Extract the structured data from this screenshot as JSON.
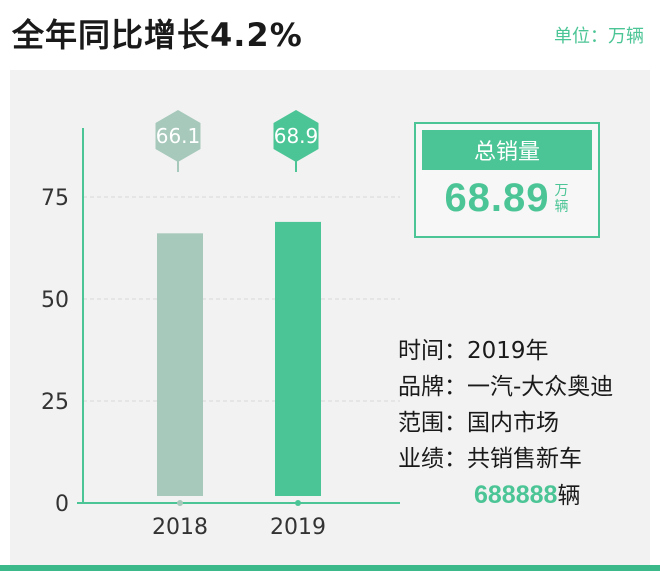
{
  "header": {
    "title": "全年同比增长4.2%",
    "unit": "单位：万辆"
  },
  "summary": {
    "label": "总销量",
    "value": "68.89",
    "unit": "万辆"
  },
  "info": {
    "time_label": "时间：",
    "time_value": "2019年",
    "brand_label": "品牌：",
    "brand_value": "一汽-大众奥迪",
    "scope_label": "范围：",
    "scope_value": "国内市场",
    "perf_label": "业绩：",
    "perf_value": "共销售新车",
    "sales_number": "688888",
    "sales_unit": "辆"
  },
  "colors": {
    "accent": "#4cc596",
    "bar_2018": "#a6c9bb",
    "bar_2019": "#4cc596",
    "stripe": "#3cb98a"
  },
  "chart_data": {
    "type": "bar",
    "categories": [
      "2018",
      "2019"
    ],
    "values": [
      66.1,
      68.9
    ],
    "data_labels": [
      "66.1",
      "68.9"
    ],
    "bar_colors": [
      "#a6c9bb",
      "#4cc596"
    ],
    "ylim": [
      0,
      90
    ],
    "yticks": [
      0,
      25,
      50,
      75
    ],
    "ytick_labels": [
      "0",
      "25",
      "50",
      "75"
    ],
    "grid": true,
    "title": "",
    "xlabel": "",
    "ylabel": ""
  }
}
